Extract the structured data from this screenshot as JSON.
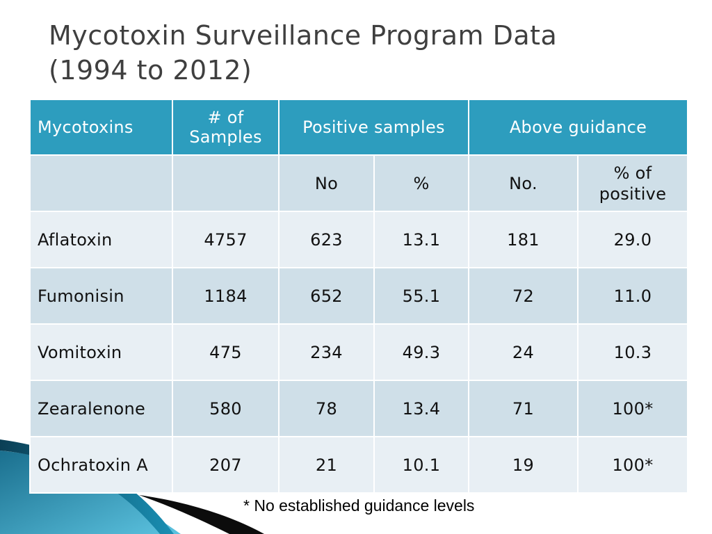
{
  "title_line1": "Mycotoxin Surveillance Program Data",
  "title_line2": "(1994 to 2012)",
  "header": {
    "mycotoxins": "Mycotoxins",
    "samples_line1": "# of",
    "samples_line2": "Samples",
    "positive": "Positive samples",
    "above": "Above guidance"
  },
  "subheader": {
    "no": "No",
    "pct": "%",
    "no2": "No.",
    "pct_pos_line1": "% of",
    "pct_pos_line2": "positive"
  },
  "rows": [
    {
      "name": "Aflatoxin",
      "samples": "4757",
      "pos_no": "623",
      "pos_pct": "13.1",
      "above_no": "181",
      "above_pct": "29.0"
    },
    {
      "name": "Fumonisin",
      "samples": "1184",
      "pos_no": "652",
      "pos_pct": "55.1",
      "above_no": "72",
      "above_pct": "11.0"
    },
    {
      "name": "Vomitoxin",
      "samples": "475",
      "pos_no": "234",
      "pos_pct": "49.3",
      "above_no": "24",
      "above_pct": "10.3"
    },
    {
      "name": "Zearalenone",
      "samples": "580",
      "pos_no": "78",
      "pos_pct": "13.4",
      "above_no": "71",
      "above_pct": "100*"
    },
    {
      "name": "Ochratoxin A",
      "samples": "207",
      "pos_no": "21",
      "pos_pct": "10.1",
      "above_no": "19",
      "above_pct": "100*"
    }
  ],
  "footnote": "* No established guidance levels",
  "colors": {
    "header_bg": "#2d9dbe",
    "row_dark": "#cfdfe8",
    "row_light": "#e8eff4",
    "title": "#3f3f3f"
  }
}
